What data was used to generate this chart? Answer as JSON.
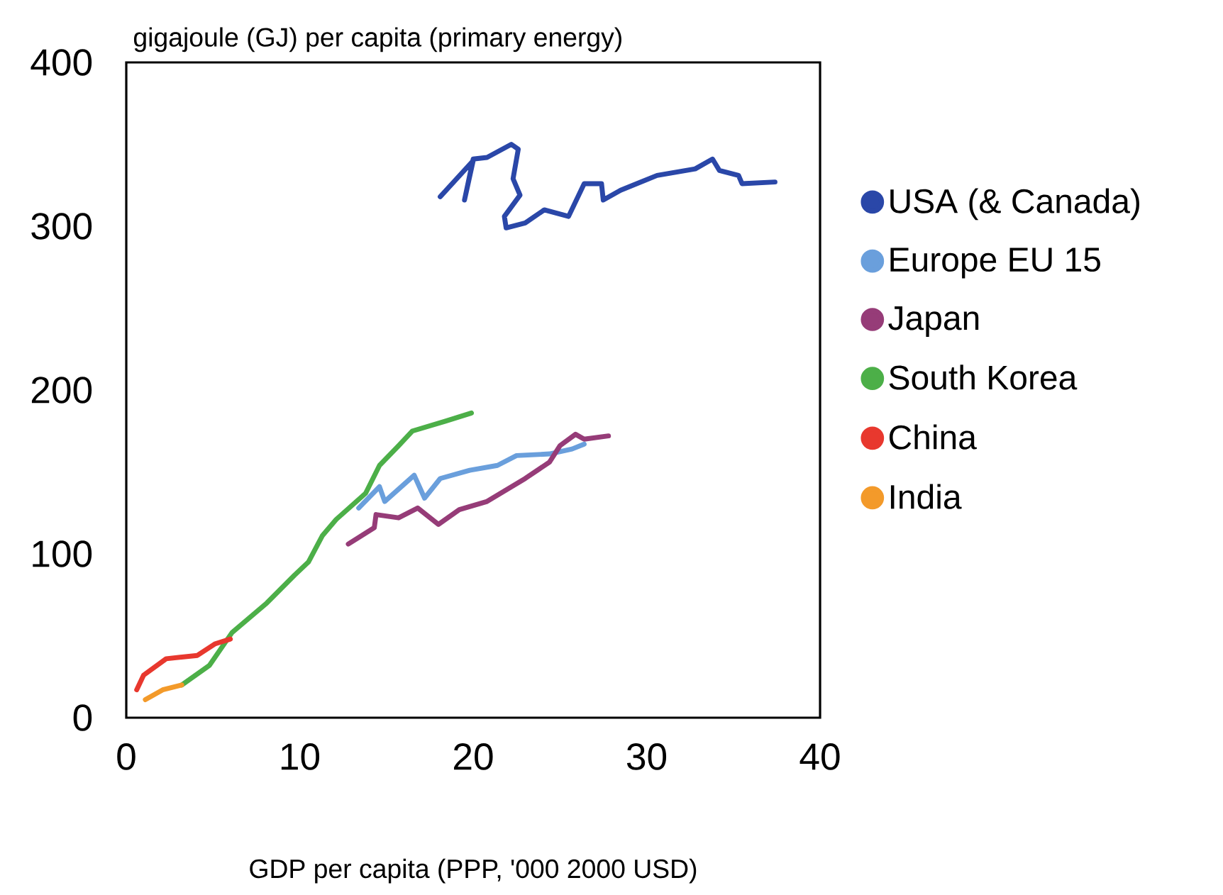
{
  "chart_data": {
    "type": "line",
    "ylabel": "gigajoule (GJ) per capita (primary energy)",
    "xlabel": "GDP per capita (PPP, '000 2000 USD)",
    "xlim": [
      0,
      40
    ],
    "ylim": [
      0,
      400
    ],
    "xticks": [
      0,
      10,
      20,
      30,
      40
    ],
    "yticks": [
      0,
      100,
      200,
      300,
      400
    ],
    "grid": false,
    "legend": "right",
    "line_style": "solid",
    "series": [
      {
        "name": "USA  (& Canada)",
        "color": "#2a47a8",
        "x": [
          18.1,
          20.0,
          19.5,
          20.0,
          20.8,
          22.2,
          22.6,
          22.3,
          22.7,
          21.8,
          21.9,
          23.0,
          24.1,
          25.5,
          26.4,
          27.4,
          27.5,
          28.5,
          30.6,
          32.8,
          33.8,
          34.2,
          35.3,
          35.5,
          37.4
        ],
        "values": [
          318,
          340,
          316,
          341,
          342,
          350,
          347,
          329,
          319,
          306,
          299,
          302,
          310,
          306,
          326,
          326,
          316,
          322,
          331,
          335,
          341,
          334,
          331,
          326,
          327
        ]
      },
      {
        "name": "Europe EU 15",
        "color": "#6a9fdc",
        "x": [
          13.4,
          14.6,
          14.9,
          16.6,
          17.2,
          18.1,
          19.8,
          21.4,
          22.5,
          24.4,
          25.7,
          26.4
        ],
        "values": [
          128,
          141,
          132,
          148,
          134,
          146,
          151,
          154,
          160,
          161,
          164,
          167
        ]
      },
      {
        "name": "Japan",
        "color": "#963c78",
        "x": [
          12.8,
          14.3,
          14.4,
          15.7,
          16.8,
          18.0,
          19.2,
          20.8,
          23.0,
          24.4,
          25.0,
          25.9,
          26.4,
          27.8
        ],
        "values": [
          106,
          116,
          124,
          122,
          128,
          118,
          127,
          132,
          146,
          156,
          166,
          173,
          170,
          172
        ]
      },
      {
        "name": "South Korea",
        "color": "#4caf48",
        "x": [
          3.2,
          4.8,
          6.1,
          8.1,
          9.7,
          10.5,
          11.3,
          12.1,
          13.8,
          14.6,
          15.7,
          16.5,
          18.4,
          19.9
        ],
        "values": [
          20,
          32,
          52,
          70,
          87,
          95,
          111,
          121,
          137,
          154,
          166,
          175,
          181,
          186
        ]
      },
      {
        "name": "China",
        "color": "#e8382e",
        "x": [
          0.6,
          1.0,
          2.3,
          4.1,
          5.1,
          6.0
        ],
        "values": [
          17,
          26,
          36,
          38,
          45,
          48
        ]
      },
      {
        "name": "India",
        "color": "#f39a2a",
        "x": [
          1.1,
          2.1,
          3.2
        ],
        "values": [
          11,
          17,
          20
        ]
      }
    ]
  }
}
